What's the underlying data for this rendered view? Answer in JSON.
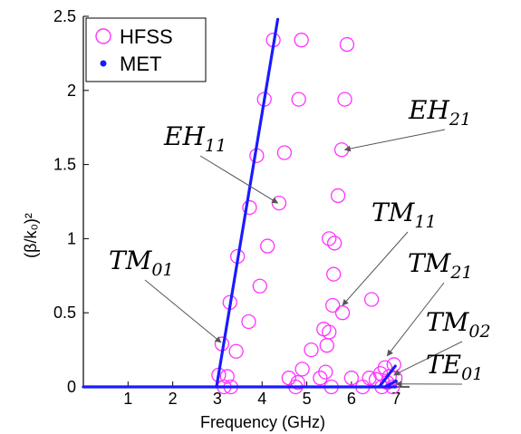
{
  "chart_data": {
    "type": "scatter",
    "title": "",
    "xlabel": "Frequency (GHz)",
    "ylabel": "(β/k₀)²",
    "xlim": [
      0,
      7.3
    ],
    "ylim": [
      0,
      2.5
    ],
    "xticks": [
      1,
      2,
      3,
      4,
      5,
      6,
      7
    ],
    "yticks": [
      0,
      0.5,
      1,
      1.5,
      2,
      2.5
    ],
    "grid": false,
    "legend": "top-left",
    "colors": {
      "hfss": "#ff33ff",
      "met": "#1a1aff"
    },
    "series": [
      {
        "name": "HFSS",
        "marker": "open-circle",
        "points": [
          [
            3.03,
            0.08
          ],
          [
            3.1,
            0.29
          ],
          [
            3.22,
            0.07
          ],
          [
            3.28,
            0.57
          ],
          [
            3.15,
            0.0
          ],
          [
            3.3,
            0.0
          ],
          [
            3.42,
            0.24
          ],
          [
            3.45,
            0.88
          ],
          [
            3.7,
            0.44
          ],
          [
            3.72,
            1.21
          ],
          [
            3.88,
            1.56
          ],
          [
            3.95,
            0.68
          ],
          [
            4.05,
            1.94
          ],
          [
            4.12,
            0.95
          ],
          [
            4.25,
            2.34
          ],
          [
            4.38,
            1.24
          ],
          [
            4.5,
            1.58
          ],
          [
            4.6,
            0.06
          ],
          [
            4.75,
            0.0
          ],
          [
            4.8,
            0.03
          ],
          [
            4.82,
            1.94
          ],
          [
            4.88,
            2.34
          ],
          [
            4.9,
            0.12
          ],
          [
            5.1,
            0.25
          ],
          [
            5.3,
            0.06
          ],
          [
            5.38,
            0.39
          ],
          [
            5.42,
            0.1
          ],
          [
            5.45,
            0.28
          ],
          [
            5.5,
            0.37
          ],
          [
            5.5,
            1.0
          ],
          [
            5.55,
            0.0
          ],
          [
            5.58,
            0.55
          ],
          [
            5.6,
            0.76
          ],
          [
            5.62,
            0.97
          ],
          [
            5.7,
            1.29
          ],
          [
            5.78,
            1.6
          ],
          [
            5.8,
            0.5
          ],
          [
            5.85,
            1.94
          ],
          [
            5.9,
            2.31
          ],
          [
            6.0,
            0.06
          ],
          [
            6.25,
            0.0
          ],
          [
            6.4,
            0.06
          ],
          [
            6.45,
            0.59
          ],
          [
            6.55,
            0.05
          ],
          [
            6.65,
            0.09
          ],
          [
            6.68,
            0.0
          ],
          [
            6.75,
            0.13
          ],
          [
            6.8,
            0.03
          ],
          [
            6.85,
            0.07
          ],
          [
            6.95,
            0.15
          ],
          [
            6.92,
            0.0
          ],
          [
            6.98,
            0.06
          ]
        ]
      },
      {
        "name": "MET",
        "marker": "dot",
        "segments": [
          [
            [
              0.0,
              0.0
            ],
            [
              7.0,
              0.0
            ]
          ],
          [
            [
              2.98,
              0.0
            ],
            [
              4.35,
              2.48
            ]
          ],
          [
            [
              6.62,
              0.0
            ],
            [
              6.98,
              0.14
            ]
          ],
          [
            [
              6.75,
              0.0
            ],
            [
              7.0,
              0.04
            ]
          ]
        ]
      }
    ],
    "annotations": [
      {
        "base": "TM",
        "sub": "01",
        "point": [
          3.08,
          0.3
        ]
      },
      {
        "base": "EH",
        "sub": "11",
        "point": [
          4.35,
          1.24
        ]
      },
      {
        "base": "EH",
        "sub": "21",
        "point": [
          5.85,
          1.6
        ]
      },
      {
        "base": "TM",
        "sub": "11",
        "point": [
          5.8,
          0.55
        ]
      },
      {
        "base": "TM",
        "sub": "21",
        "point": [
          6.8,
          0.21
        ]
      },
      {
        "base": "TM",
        "sub": "02",
        "point": [
          6.95,
          0.08
        ]
      },
      {
        "base": "TE",
        "sub": "01",
        "point": [
          7.0,
          0.02
        ]
      }
    ]
  }
}
